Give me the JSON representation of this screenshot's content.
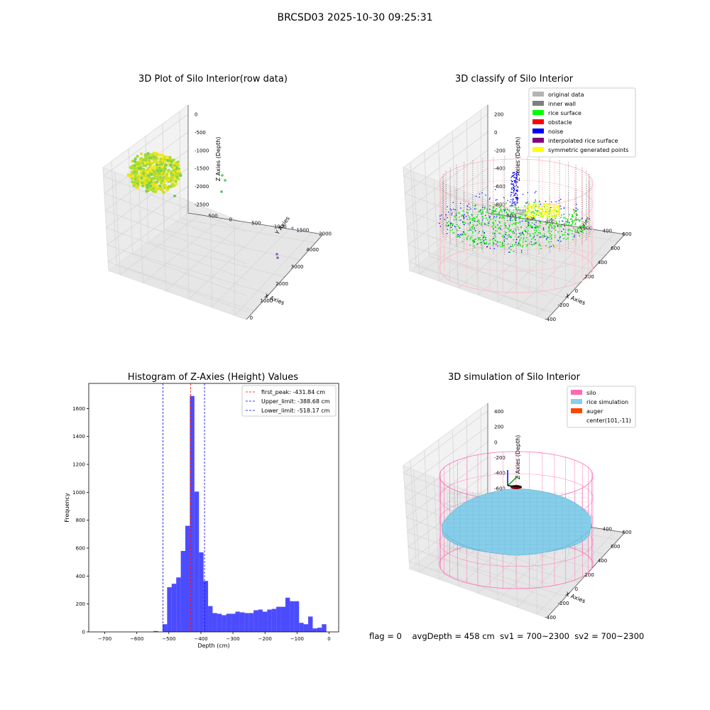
{
  "suptitle": "BRCSD03 2025-10-30 09:25:31",
  "footer": {
    "flag": "flag = 0",
    "avg_depth": "avgDepth = 458 cm",
    "sv1": "sv1 = 700~2300",
    "sv2": "sv2 = 700~2300"
  },
  "panel1": {
    "title": "3D Plot of Silo Interior(row data)",
    "xlabel": "X Axies",
    "ylabel": "Y Axies",
    "zlabel": "Z Axies (Depth)",
    "xticks": [
      "0",
      "1000",
      "2000",
      "3000",
      "4000"
    ],
    "yticks": [
      "-500",
      "0",
      "500",
      "1000",
      "1500",
      "2000"
    ],
    "zticks": [
      "0",
      "-500",
      "-1000",
      "-1500",
      "-2000",
      "-2500"
    ]
  },
  "panel2": {
    "title": "3D classify of Silo Interior",
    "xlabel": "X Axies",
    "ylabel": "Y Axies",
    "zlabel": "Z Axies (Depth)",
    "xticks": [
      "-400",
      "-200",
      "0",
      "200",
      "400",
      "600"
    ],
    "yticks": [
      "-600",
      "-400",
      "-200",
      "0",
      "200",
      "400",
      "600"
    ],
    "zticks": [
      "200",
      "0",
      "-200",
      "-400",
      "-600",
      "-800"
    ],
    "legend": [
      {
        "label": "original data",
        "color": "#b4b4b4"
      },
      {
        "label": "inner wall",
        "color": "#7f7f7f"
      },
      {
        "label": "rice surface",
        "color": "#00ff00"
      },
      {
        "label": "obstacle",
        "color": "#ff0000"
      },
      {
        "label": "noise",
        "color": "#0000ff"
      },
      {
        "label": "interpolated rice surface",
        "color": "#800080"
      },
      {
        "label": "symmetric generated points",
        "color": "#ffff00"
      }
    ]
  },
  "panel4": {
    "title": "3D simulation of Silo Interior",
    "xlabel": "X Axies",
    "ylabel": "Y Axies",
    "zlabel": "Z Axies (Depth)",
    "xticks": [
      "-400",
      "-200",
      "0",
      "200",
      "400",
      "600"
    ],
    "yticks": [
      "-600",
      "-400",
      "-200",
      "0",
      "200",
      "400",
      "600"
    ],
    "zticks": [
      "400",
      "200",
      "0",
      "-200",
      "-400",
      "-600",
      "-800"
    ],
    "legend": [
      {
        "label": "silo",
        "color": "#ff69b4"
      },
      {
        "label": "rice simulation",
        "color": "#87ceeb"
      },
      {
        "label": "auger",
        "color": "#ff4500"
      },
      {
        "label": "center(101,-11)",
        "color": ""
      }
    ]
  },
  "chart_data": {
    "type": "bar",
    "title": "Histogram of Z-Axies (Height) Values",
    "xlabel": "Depth (cm)",
    "ylabel": "Frequency",
    "xlim": [
      -750,
      30
    ],
    "ylim": [
      0,
      1780
    ],
    "bar_color": "#0000ff",
    "xticks": [
      -700,
      -600,
      -500,
      -400,
      -300,
      -200,
      -100,
      0
    ],
    "yticks": [
      0,
      200,
      400,
      600,
      800,
      1000,
      1200,
      1400,
      1600
    ],
    "bin_width": 14.2,
    "bins": [
      [
        -548,
        6
      ],
      [
        -533.8,
        0
      ],
      [
        -519.6,
        55
      ],
      [
        -505.4,
        320
      ],
      [
        -491.2,
        345
      ],
      [
        -477,
        390
      ],
      [
        -462.8,
        580
      ],
      [
        -448.6,
        760
      ],
      [
        -434.4,
        1690
      ],
      [
        -420.2,
        1005
      ],
      [
        -406,
        570
      ],
      [
        -391.8,
        365
      ],
      [
        -377.6,
        185
      ],
      [
        -363.4,
        135
      ],
      [
        -349.2,
        130
      ],
      [
        -335,
        120
      ],
      [
        -320.8,
        130
      ],
      [
        -306.6,
        130
      ],
      [
        -292.4,
        145
      ],
      [
        -278.2,
        140
      ],
      [
        -264,
        135
      ],
      [
        -249.8,
        135
      ],
      [
        -235.6,
        155
      ],
      [
        -221.4,
        160
      ],
      [
        -207.2,
        145
      ],
      [
        -193,
        160
      ],
      [
        -178.8,
        165
      ],
      [
        -164.6,
        180
      ],
      [
        -150.4,
        180
      ],
      [
        -136.2,
        245
      ],
      [
        -122,
        220
      ],
      [
        -107.8,
        220
      ],
      [
        -93.6,
        65
      ],
      [
        -79.4,
        55
      ],
      [
        -65.2,
        110
      ],
      [
        -51,
        25
      ],
      [
        -36.8,
        30
      ],
      [
        -22.6,
        55
      ]
    ],
    "vlines": [
      {
        "label": "first_peak: -431.84 cm",
        "x": -431.84,
        "color": "#ff0000"
      },
      {
        "label": "Upper_limit: -388.68 cm",
        "x": -388.68,
        "color": "#0000ff"
      },
      {
        "label": "Lower_limit: -518.17 cm",
        "x": -518.17,
        "color": "#0000ff"
      }
    ],
    "legend_position": "top-right"
  }
}
